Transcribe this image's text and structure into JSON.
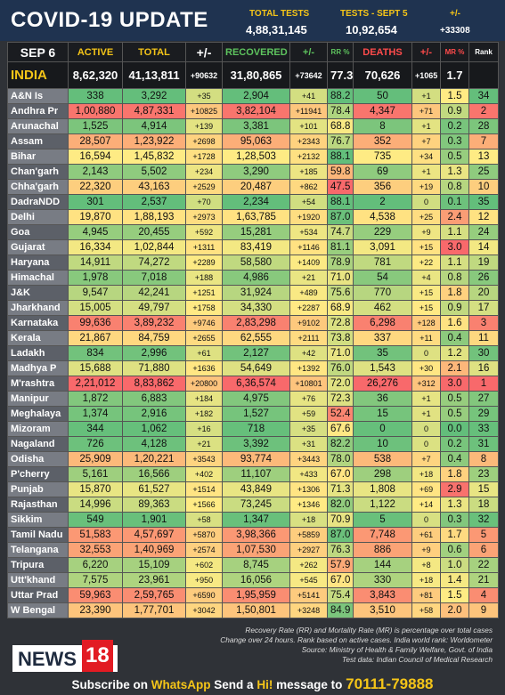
{
  "header": {
    "title": "COVID-19 UPDATE",
    "total_tests_label": "TOTAL TESTS",
    "total_tests": "4,88,31,145",
    "tests_day_label": "TESTS - SEPT 5",
    "tests_day": "10,92,654",
    "change_label": "+/-",
    "change": "+33308"
  },
  "columns": [
    "SEP 6",
    "ACTIVE",
    "TOTAL",
    "+/-",
    "RECOVERED",
    "+/-",
    "RR %",
    "DEATHS",
    "+/-",
    "MR %",
    "Rank"
  ],
  "india": [
    "INDIA",
    "8,62,320",
    "41,13,811",
    "+90632",
    "31,80,865",
    "+73642",
    "77.3",
    "70,626",
    "+1065",
    "1.7"
  ],
  "rows": [
    [
      "A&N Is",
      "338",
      "3,292",
      "+35",
      "2,904",
      "+41",
      "88.2",
      "50",
      "+1",
      "1.5",
      "34"
    ],
    [
      "Andhra Pr",
      "1,00,880",
      "4,87,331",
      "+10825",
      "3,82,104",
      "+11941",
      "78.4",
      "4,347",
      "+71",
      "0.9",
      "2"
    ],
    [
      "Arunachal",
      "1,525",
      "4,914",
      "+139",
      "3,381",
      "+101",
      "68.8",
      "8",
      "+1",
      "0.2",
      "28"
    ],
    [
      "Assam",
      "28,507",
      "1,23,922",
      "+2698",
      "95,063",
      "+2343",
      "76.7",
      "352",
      "+7",
      "0.3",
      "7"
    ],
    [
      "Bihar",
      "16,594",
      "1,45,832",
      "+1728",
      "1,28,503",
      "+2132",
      "88.1",
      "735",
      "+34",
      "0.5",
      "13"
    ],
    [
      "Chan'garh",
      "2,143",
      "5,502",
      "+234",
      "3,290",
      "+185",
      "59.8",
      "69",
      "+1",
      "1.3",
      "25"
    ],
    [
      "Chha'garh",
      "22,320",
      "43,163",
      "+2529",
      "20,487",
      "+862",
      "47.5",
      "356",
      "+19",
      "0.8",
      "10"
    ],
    [
      "DadraNDD",
      "301",
      "2,537",
      "+70",
      "2,234",
      "+54",
      "88.1",
      "2",
      "0",
      "0.1",
      "35"
    ],
    [
      "Delhi",
      "19,870",
      "1,88,193",
      "+2973",
      "1,63,785",
      "+1920",
      "87.0",
      "4,538",
      "+25",
      "2.4",
      "12"
    ],
    [
      "Goa",
      "4,945",
      "20,455",
      "+592",
      "15,281",
      "+534",
      "74.7",
      "229",
      "+9",
      "1.1",
      "24"
    ],
    [
      "Gujarat",
      "16,334",
      "1,02,844",
      "+1311",
      "83,419",
      "+1146",
      "81.1",
      "3,091",
      "+15",
      "3.0",
      "14"
    ],
    [
      "Haryana",
      "14,911",
      "74,272",
      "+2289",
      "58,580",
      "+1409",
      "78.9",
      "781",
      "+22",
      "1.1",
      "19"
    ],
    [
      "Himachal",
      "1,978",
      "7,018",
      "+188",
      "4,986",
      "+21",
      "71.0",
      "54",
      "+4",
      "0.8",
      "26"
    ],
    [
      "J&K",
      "9,547",
      "42,241",
      "+1251",
      "31,924",
      "+489",
      "75.6",
      "770",
      "+15",
      "1.8",
      "20"
    ],
    [
      "Jharkhand",
      "15,005",
      "49,797",
      "+1758",
      "34,330",
      "+2287",
      "68.9",
      "462",
      "+15",
      "0.9",
      "17"
    ],
    [
      "Karnataka",
      "99,636",
      "3,89,232",
      "+9746",
      "2,83,298",
      "+9102",
      "72.8",
      "6,298",
      "+128",
      "1.6",
      "3"
    ],
    [
      "Kerala",
      "21,867",
      "84,759",
      "+2655",
      "62,555",
      "+2111",
      "73.8",
      "337",
      "+11",
      "0.4",
      "11"
    ],
    [
      "Ladakh",
      "834",
      "2,996",
      "+61",
      "2,127",
      "+42",
      "71.0",
      "35",
      "0",
      "1.2",
      "30"
    ],
    [
      "Madhya P",
      "15,688",
      "71,880",
      "+1636",
      "54,649",
      "+1392",
      "76.0",
      "1,543",
      "+30",
      "2.1",
      "16"
    ],
    [
      "M'rashtra",
      "2,21,012",
      "8,83,862",
      "+20800",
      "6,36,574",
      "+10801",
      "72.0",
      "26,276",
      "+312",
      "3.0",
      "1"
    ],
    [
      "Manipur",
      "1,872",
      "6,883",
      "+184",
      "4,975",
      "+76",
      "72.3",
      "36",
      "+1",
      "0.5",
      "27"
    ],
    [
      "Meghalaya",
      "1,374",
      "2,916",
      "+182",
      "1,527",
      "+59",
      "52.4",
      "15",
      "+1",
      "0.5",
      "29"
    ],
    [
      "Mizoram",
      "344",
      "1,062",
      "+16",
      "718",
      "+35",
      "67.6",
      "0",
      "0",
      "0.0",
      "33"
    ],
    [
      "Nagaland",
      "726",
      "4,128",
      "+21",
      "3,392",
      "+31",
      "82.2",
      "10",
      "0",
      "0.2",
      "31"
    ],
    [
      "Odisha",
      "25,909",
      "1,20,221",
      "+3543",
      "93,774",
      "+3443",
      "78.0",
      "538",
      "+7",
      "0.4",
      "8"
    ],
    [
      "P'cherry",
      "5,161",
      "16,566",
      "+402",
      "11,107",
      "+433",
      "67.0",
      "298",
      "+18",
      "1.8",
      "23"
    ],
    [
      "Punjab",
      "15,870",
      "61,527",
      "+1514",
      "43,849",
      "+1306",
      "71.3",
      "1,808",
      "+69",
      "2.9",
      "15"
    ],
    [
      "Rajasthan",
      "14,996",
      "89,363",
      "+1566",
      "73,245",
      "+1346",
      "82.0",
      "1,122",
      "+14",
      "1.3",
      "18"
    ],
    [
      "Sikkim",
      "549",
      "1,901",
      "+58",
      "1,347",
      "+18",
      "70.9",
      "5",
      "0",
      "0.3",
      "32"
    ],
    [
      "Tamil Nadu",
      "51,583",
      "4,57,697",
      "+5870",
      "3,98,366",
      "+5859",
      "87.0",
      "7,748",
      "+61",
      "1.7",
      "5"
    ],
    [
      "Telangana",
      "32,553",
      "1,40,969",
      "+2574",
      "1,07,530",
      "+2927",
      "76.3",
      "886",
      "+9",
      "0.6",
      "6"
    ],
    [
      "Tripura",
      "6,220",
      "15,109",
      "+602",
      "8,745",
      "+262",
      "57.9",
      "144",
      "+8",
      "1.0",
      "22"
    ],
    [
      "Utt'khand",
      "7,575",
      "23,961",
      "+950",
      "16,056",
      "+545",
      "67.0",
      "330",
      "+18",
      "1.4",
      "21"
    ],
    [
      "Uttar Prad",
      "59,963",
      "2,59,765",
      "+6590",
      "1,95,959",
      "+5141",
      "75.4",
      "3,843",
      "+81",
      "1.5",
      "4"
    ],
    [
      "W Bengal",
      "23,390",
      "1,77,701",
      "+3042",
      "1,50,801",
      "+3248",
      "84.9",
      "3,510",
      "+58",
      "2.0",
      "9"
    ]
  ],
  "footer": {
    "notes": [
      "Recovery Rate (RR) and Mortality Rate (MR) is percentage over total cases",
      "Change over 24 hours. Rank based on active cases. India world rank: Worldometer",
      "Source: Ministry of Health & Family Welfare, Govt. of India",
      "Test data: Indian Council of Medical Research"
    ],
    "logo": [
      "NEWS",
      "18"
    ],
    "subscribe": [
      "Subscribe on",
      "WhatsApp",
      "Send a",
      "Hi!",
      "message to",
      "70111-79888"
    ]
  }
}
